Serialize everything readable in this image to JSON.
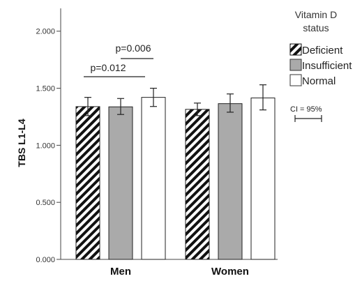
{
  "chart_data": {
    "type": "bar",
    "ylabel": "TBS L1-L4",
    "xlabel": "",
    "ylim": [
      0,
      2.2
    ],
    "yticks": [
      {
        "value": 0,
        "label": "0.000"
      },
      {
        "value": 0.5,
        "label": "0.500"
      },
      {
        "value": 1.0,
        "label": "1.000"
      },
      {
        "value": 1.5,
        "label": "1.500"
      },
      {
        "value": 2.0,
        "label": "2.000"
      }
    ],
    "categories": [
      "Men",
      "Women"
    ],
    "series": [
      {
        "name": "Deficient",
        "pattern": "hatch",
        "color": "#111111",
        "values": [
          1.339,
          1.315
        ],
        "ci_low": [
          1.26,
          1.26
        ],
        "ci_high": [
          1.42,
          1.37
        ]
      },
      {
        "name": "Insufficient",
        "pattern": "solid",
        "color": "#aaaaaa",
        "values": [
          1.337,
          1.365
        ],
        "ci_low": [
          1.27,
          1.29
        ],
        "ci_high": [
          1.41,
          1.45
        ]
      },
      {
        "name": "Normal",
        "pattern": "solid",
        "color": "#ffffff",
        "values": [
          1.42,
          1.415
        ],
        "ci_low": [
          1.34,
          1.31
        ],
        "ci_high": [
          1.5,
          1.53
        ]
      }
    ],
    "legend": {
      "title": "Vitamin D status",
      "title_lines": [
        "Vitamin D",
        "status"
      ],
      "placement": "right"
    },
    "annotations": [
      {
        "text": "p=0.006",
        "category": "Men",
        "from_series": 1,
        "to_series": 2
      },
      {
        "text": "p=0.012",
        "category": "Men",
        "from_series": 0,
        "to_series": 2
      }
    ],
    "ci_note": "CI = 95%",
    "grid": false
  }
}
